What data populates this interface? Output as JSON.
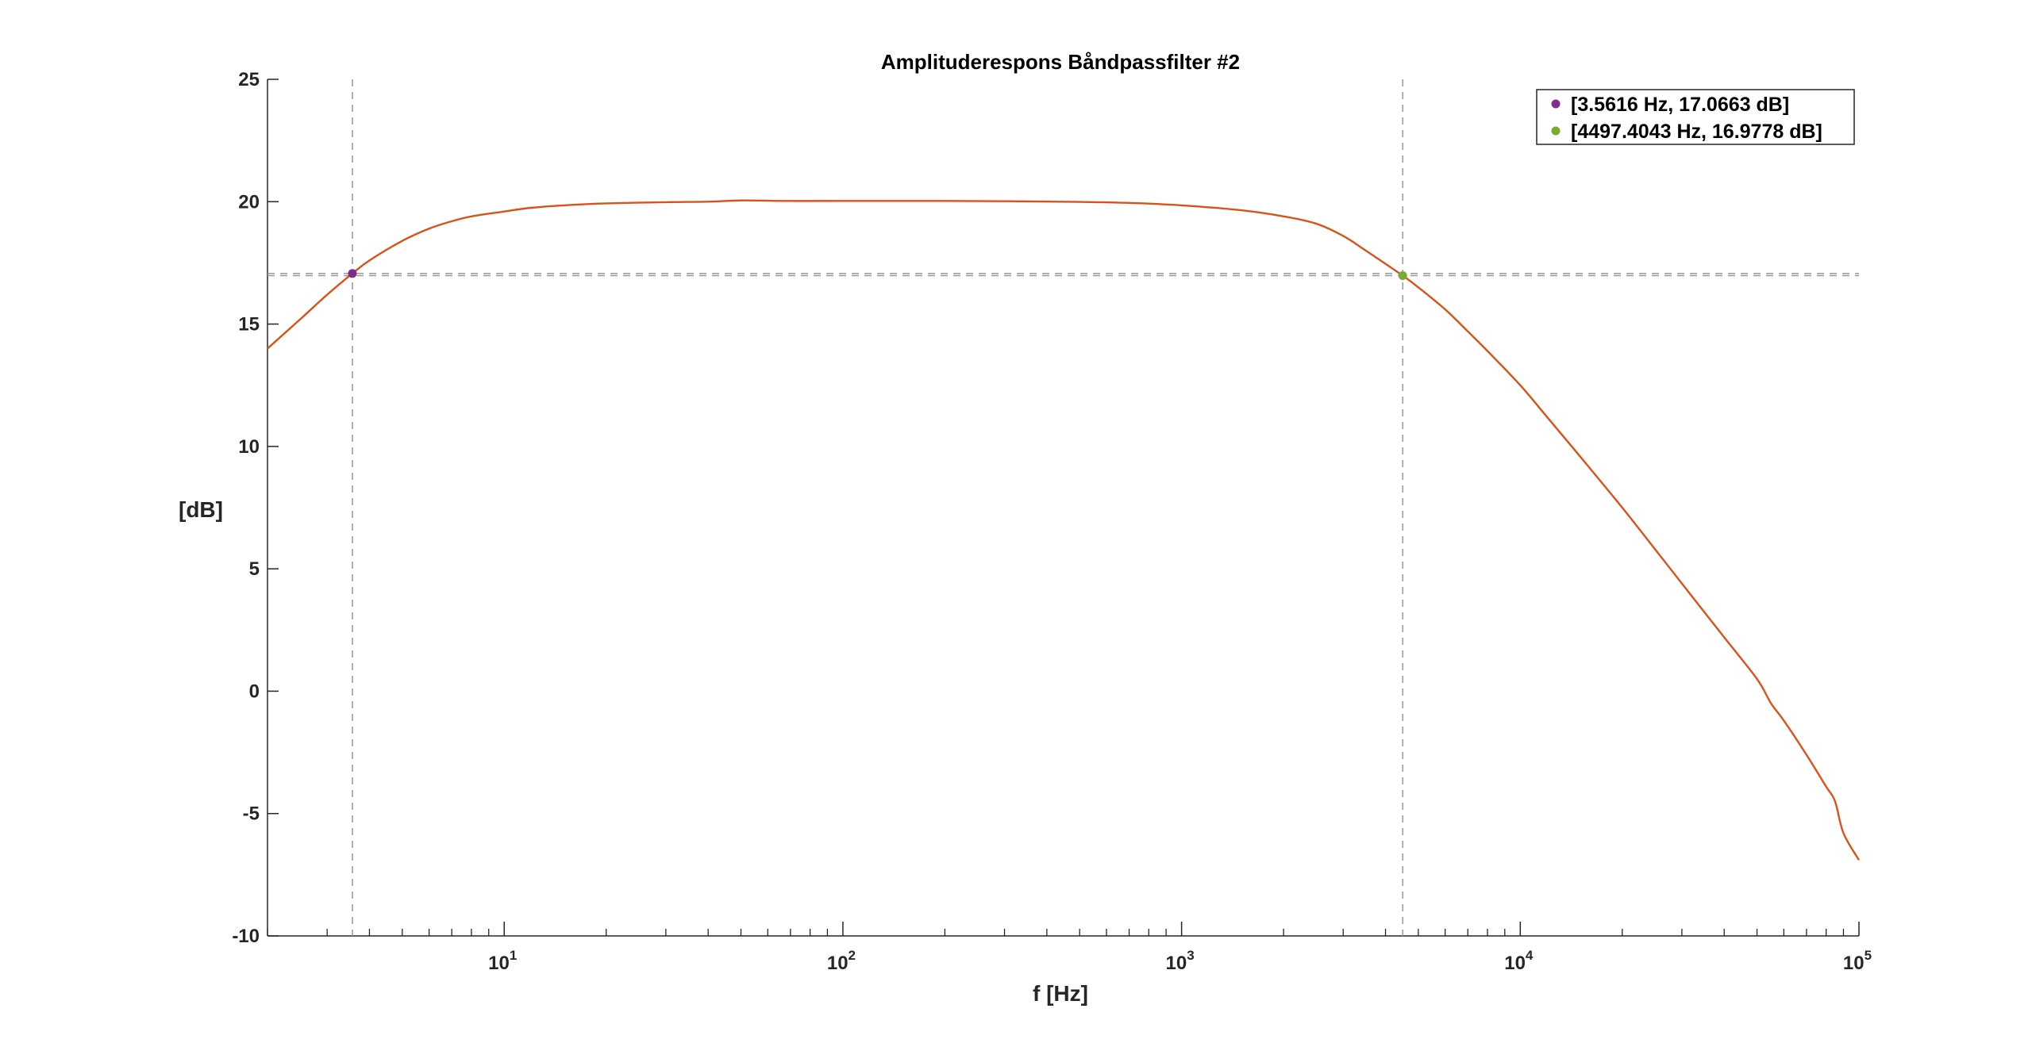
{
  "chart_data": {
    "type": "line",
    "title": "Amplituderespons Båndpassfilter #2",
    "xlabel": "f [Hz]",
    "ylabel": "[dB]",
    "xscale": "log",
    "xlim": [
      2,
      100000
    ],
    "ylim": [
      -10,
      25
    ],
    "yticks": [
      -10,
      -5,
      0,
      5,
      10,
      15,
      20,
      25
    ],
    "ytick_labels": [
      "-10",
      "-5",
      "0",
      "5",
      "10",
      "15",
      "20",
      "25"
    ],
    "xticks": [
      10,
      100,
      1000,
      10000,
      100000
    ],
    "xtick_labels": [
      {
        "base": "10",
        "exp": "1"
      },
      {
        "base": "10",
        "exp": "2"
      },
      {
        "base": "10",
        "exp": "3"
      },
      {
        "base": "10",
        "exp": "4"
      },
      {
        "base": "10",
        "exp": "5"
      }
    ],
    "grid": false,
    "legend_position": "top-right",
    "series": [
      {
        "color": "#d95319",
        "x": [
          2,
          2.5,
          3,
          3.5616,
          4,
          5,
          6,
          7,
          8,
          10,
          12,
          15,
          20,
          30,
          40,
          50,
          70,
          100,
          150,
          200,
          300,
          500,
          700,
          1000,
          1500,
          2000,
          2500,
          3000,
          3500,
          4497.4043,
          5000,
          6000,
          7000,
          8000,
          10000,
          12000,
          15000,
          20000,
          25000,
          30000,
          40000,
          50000,
          55000,
          60000,
          70000,
          80000,
          85000,
          90000,
          100000
        ],
        "y": [
          14.0,
          15.2,
          16.2,
          17.0663,
          17.6,
          18.4,
          18.9,
          19.2,
          19.4,
          19.6,
          19.75,
          19.85,
          19.93,
          19.98,
          20.0,
          20.05,
          20.03,
          20.03,
          20.03,
          20.03,
          20.02,
          19.99,
          19.95,
          19.85,
          19.65,
          19.4,
          19.1,
          18.6,
          18.0,
          16.9778,
          16.5,
          15.6,
          14.7,
          13.9,
          12.5,
          11.2,
          9.6,
          7.5,
          5.8,
          4.4,
          2.2,
          0.5,
          -0.5,
          -1.2,
          -2.6,
          -3.9,
          -4.5,
          -5.8,
          -6.9
        ]
      }
    ],
    "markers": [
      {
        "x": 3.5616,
        "y": 17.0663,
        "color": "#7e2f8e",
        "label": "[3.5616 Hz, 17.0663 dB]"
      },
      {
        "x": 4497.4043,
        "y": 16.9778,
        "color": "#77ac30",
        "label": "[4497.4043 Hz, 16.9778 dB]"
      }
    ],
    "reference_lines": {
      "vertical_x": [
        3.5616,
        4497.4043
      ],
      "horizontal_y": [
        17.0663,
        16.9778
      ],
      "color": "#999999",
      "style": "dashed"
    }
  }
}
